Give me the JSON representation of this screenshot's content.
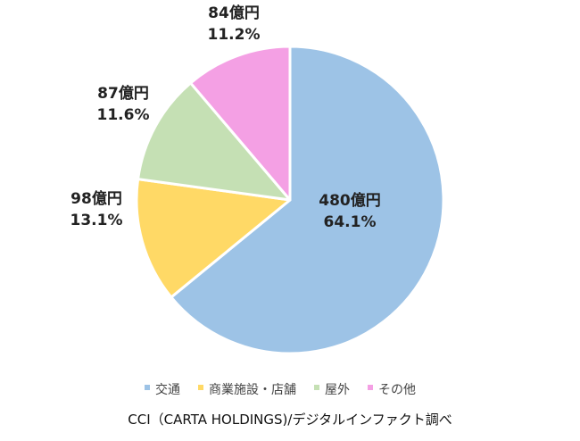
{
  "chart_data": {
    "type": "pie",
    "title": "",
    "slices": [
      {
        "label": "交通",
        "value": 480,
        "value_label": "480億円",
        "percent_label": "64.1%",
        "color": "#9dc3e6"
      },
      {
        "label": "商業施設・店舗",
        "value": 98,
        "value_label": "98億円",
        "percent_label": "13.1%",
        "color": "#ffd966"
      },
      {
        "label": "屋外",
        "value": 87,
        "value_label": "87億円",
        "percent_label": "11.6%",
        "color": "#c5e0b4"
      },
      {
        "label": "その他",
        "value": 84,
        "value_label": "84億円",
        "percent_label": "11.2%",
        "color": "#f4a0e4"
      }
    ],
    "start_angle": "12 o'clock",
    "direction": "clockwise",
    "legend_position": "bottom"
  },
  "source_note": "CCI（CARTA HOLDINGS)/デジタルインファクト調べ"
}
